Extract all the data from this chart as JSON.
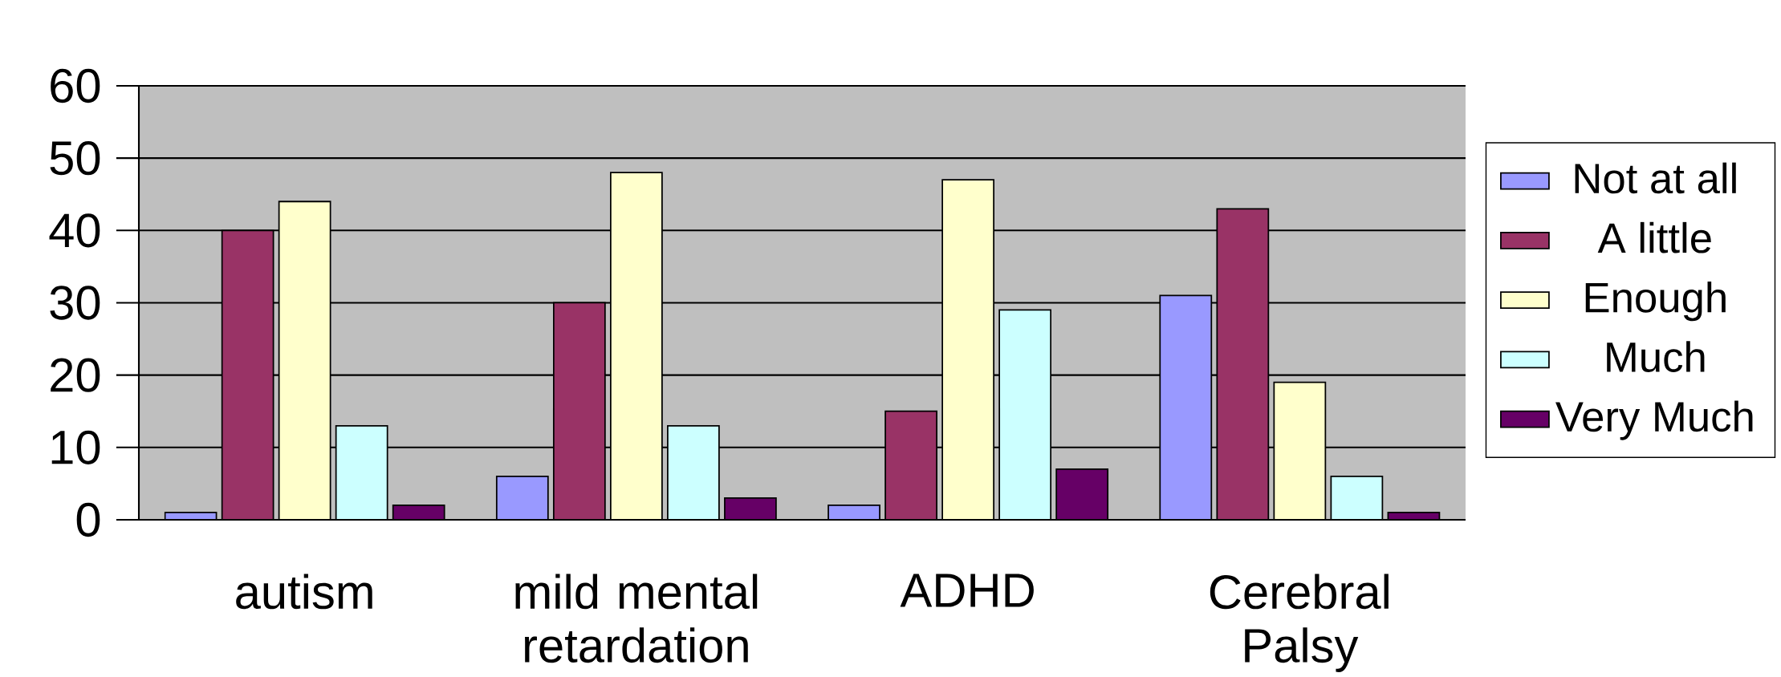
{
  "chart_data": {
    "type": "bar",
    "categories": [
      "autism",
      "mild mental retardation",
      "ADHD",
      "Cerebral Palsy"
    ],
    "series": [
      {
        "name": "Not at all",
        "color": "#9999ff",
        "values": [
          1,
          6,
          2,
          31
        ]
      },
      {
        "name": "A little",
        "color": "#993366",
        "values": [
          40,
          30,
          15,
          43
        ]
      },
      {
        "name": "Enough",
        "color": "#ffffcc",
        "values": [
          44,
          48,
          47,
          19
        ]
      },
      {
        "name": "Much",
        "color": "#ccffff",
        "values": [
          13,
          13,
          29,
          6
        ]
      },
      {
        "name": "Very Much",
        "color": "#660066",
        "values": [
          2,
          3,
          7,
          1
        ]
      }
    ],
    "ylim": [
      0,
      60
    ],
    "yticks": [
      0,
      10,
      20,
      30,
      40,
      50,
      60
    ],
    "grid": "y",
    "legend": "right"
  }
}
